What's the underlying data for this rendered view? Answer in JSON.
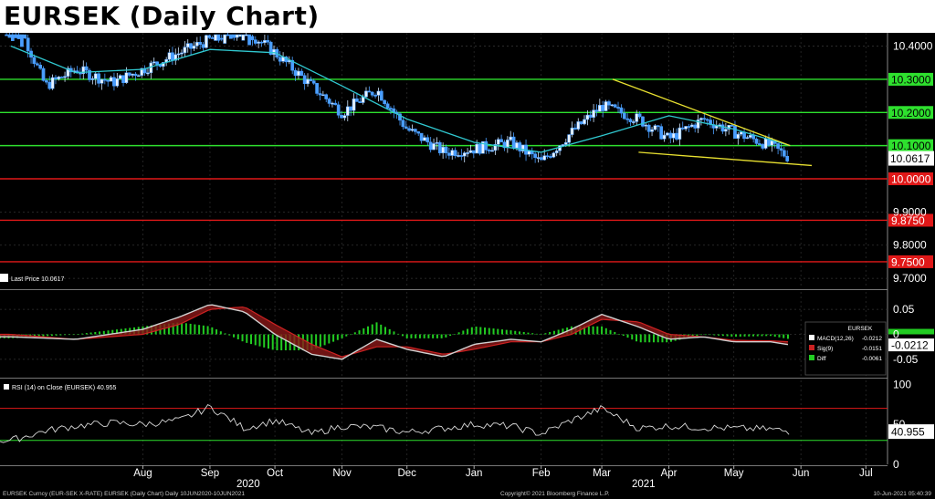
{
  "title": "EURSEK (Daily Chart)",
  "footer": {
    "left": "EURSEK Curncy (EUR-SEK X-RATE) EURSEK (Daily Chart)  Daily 10JUN2020-10JUN2021",
    "middle": "Copyright© 2021 Bloomberg Finance L.P.",
    "right": "10-Jun-2021 05:40:39"
  },
  "colors": {
    "candle": "#4a9eff",
    "ma": "#30c8d0",
    "support_resistance_green": "#2ee02e",
    "red_level": "#e01818",
    "wedge": "#e8e030",
    "macd": "#ffffff",
    "signal": "#cc2222",
    "diff": "#22cc22"
  },
  "chart_data": [
    {
      "type": "line",
      "panel": "price",
      "series_kind": "candlestick",
      "title": "EURSEK (Daily Chart)",
      "x_ticks": [
        "Aug",
        "Sep",
        "Oct",
        "Nov",
        "Dec",
        "Jan",
        "Feb",
        "Mar",
        "Apr",
        "May",
        "Jun",
        "Jul"
      ],
      "x_year_labels": [
        "2020",
        "2021"
      ],
      "y_ticks": [
        "10.4000",
        "10.2000",
        "10.1000",
        "10.0000",
        "9.9000",
        "9.8000",
        "9.7000"
      ],
      "ylim": [
        9.67,
        10.44
      ],
      "last_price_label": "Last Price 10.0617",
      "last_price": 10.0617,
      "horizontal_levels": [
        {
          "label": "10.3000",
          "value": 10.3,
          "color": "green"
        },
        {
          "label": "10.2000",
          "value": 10.2,
          "color": "green"
        },
        {
          "label": "10.1000",
          "value": 10.1,
          "color": "green"
        },
        {
          "label": "10.0000",
          "value": 10.0,
          "color": "red"
        },
        {
          "label": "9.8750",
          "value": 9.875,
          "color": "red"
        },
        {
          "label": "9.7500",
          "value": 9.75,
          "color": "red"
        }
      ],
      "price_series": {
        "x": [
          "Jun 15",
          "Jul 1",
          "Jul 15",
          "Aug 1",
          "Aug 15",
          "Sep 1",
          "Sep 15",
          "Oct 1",
          "Oct 15",
          "Nov 1",
          "Nov 15",
          "Dec 1",
          "Dec 15",
          "Jan 1",
          "Jan 15",
          "Feb 1",
          "Feb 15",
          "Mar 1",
          "Mar 15",
          "Apr 1",
          "Apr 15",
          "May 1",
          "May 15",
          "Jun 1",
          "Jun 10"
        ],
        "y": [
          10.52,
          10.28,
          10.33,
          10.29,
          10.33,
          10.38,
          10.42,
          10.45,
          10.38,
          10.28,
          10.2,
          10.27,
          10.15,
          10.08,
          10.09,
          10.11,
          10.05,
          10.14,
          10.22,
          10.18,
          10.12,
          10.18,
          10.14,
          10.1,
          10.0617
        ]
      },
      "moving_average": {
        "x": [
          "Jun 15",
          "Jul 15",
          "Aug 15",
          "Sep 15",
          "Oct 15",
          "Nov 15",
          "Dec 15",
          "Jan 15",
          "Feb 15",
          "Mar 15",
          "Apr 15",
          "May 15",
          "Jun 10"
        ],
        "y": [
          10.4,
          10.32,
          10.33,
          10.39,
          10.38,
          10.28,
          10.18,
          10.11,
          10.08,
          10.13,
          10.19,
          10.15,
          10.1
        ]
      },
      "wedge": {
        "upper": {
          "x": [
            "Mar 20",
            "Jun 10"
          ],
          "y": [
            10.3,
            10.1
          ]
        },
        "lower": {
          "x": [
            "Apr 1",
            "Jun 20"
          ],
          "y": [
            10.08,
            10.04
          ]
        }
      }
    },
    {
      "type": "line",
      "panel": "macd",
      "y_ticks": [
        "0.05",
        "0",
        "-0.05"
      ],
      "ylim": [
        -0.085,
        0.085
      ],
      "last_value_label": "-0.0212",
      "legend": {
        "title": "EURSEK",
        "items": [
          {
            "name": "MACD(12,26)",
            "value": "-0.0212",
            "color": "white"
          },
          {
            "name": "Sig(9)",
            "value": "-0.0151",
            "color": "red"
          },
          {
            "name": "Diff",
            "value": "-0.0061",
            "color": "green"
          }
        ]
      },
      "macd": {
        "x": [
          "Jun 15",
          "Jul 15",
          "Aug 15",
          "Sep 1",
          "Sep 15",
          "Oct 1",
          "Oct 15",
          "Nov 1",
          "Nov 15",
          "Dec 1",
          "Dec 15",
          "Jan 1",
          "Jan 15",
          "Feb 1",
          "Feb 15",
          "Mar 1",
          "Mar 15",
          "Apr 1",
          "Apr 15",
          "May 1",
          "May 15",
          "Jun 1",
          "Jun 10"
        ],
        "y": [
          -0.005,
          -0.01,
          0.01,
          0.035,
          0.06,
          0.045,
          0.0,
          -0.04,
          -0.05,
          -0.01,
          -0.03,
          -0.045,
          -0.02,
          -0.01,
          -0.015,
          0.01,
          0.04,
          0.015,
          -0.01,
          -0.005,
          -0.015,
          -0.015,
          -0.0212
        ]
      },
      "signal": {
        "x": [
          "Jun 15",
          "Jul 15",
          "Aug 15",
          "Sep 1",
          "Sep 15",
          "Oct 1",
          "Oct 15",
          "Nov 1",
          "Nov 15",
          "Dec 1",
          "Dec 15",
          "Jan 1",
          "Jan 15",
          "Feb 1",
          "Feb 15",
          "Mar 1",
          "Mar 15",
          "Apr 1",
          "Apr 15",
          "May 1",
          "May 15",
          "Jun 1",
          "Jun 10"
        ],
        "y": [
          0.0,
          -0.01,
          0.0,
          0.02,
          0.05,
          0.055,
          0.02,
          -0.02,
          -0.045,
          -0.025,
          -0.025,
          -0.04,
          -0.03,
          -0.015,
          -0.015,
          0.0,
          0.03,
          0.025,
          0.0,
          -0.005,
          -0.012,
          -0.013,
          -0.0151
        ]
      }
    },
    {
      "type": "line",
      "panel": "rsi",
      "legend_label": "RSI (14)  on Close (EURSEK) 40.955",
      "y_ticks": [
        "100",
        "50",
        "0"
      ],
      "ylim": [
        0,
        105
      ],
      "guide_levels": [
        70,
        30
      ],
      "last_value_label": "40.955",
      "rsi": {
        "x": [
          "Jun 15",
          "Jul 1",
          "Jul 15",
          "Aug 1",
          "Aug 15",
          "Sep 1",
          "Sep 15",
          "Oct 1",
          "Oct 15",
          "Nov 1",
          "Nov 15",
          "Dec 1",
          "Dec 15",
          "Jan 1",
          "Jan 15",
          "Feb 1",
          "Feb 15",
          "Mar 1",
          "Mar 15",
          "Apr 1",
          "Apr 15",
          "May 1",
          "May 15",
          "Jun 1",
          "Jun 10"
        ],
        "y": [
          30,
          42,
          48,
          52,
          50,
          55,
          72,
          45,
          55,
          38,
          48,
          46,
          40,
          45,
          50,
          48,
          38,
          55,
          70,
          45,
          48,
          46,
          45,
          44,
          40.955
        ]
      }
    }
  ]
}
